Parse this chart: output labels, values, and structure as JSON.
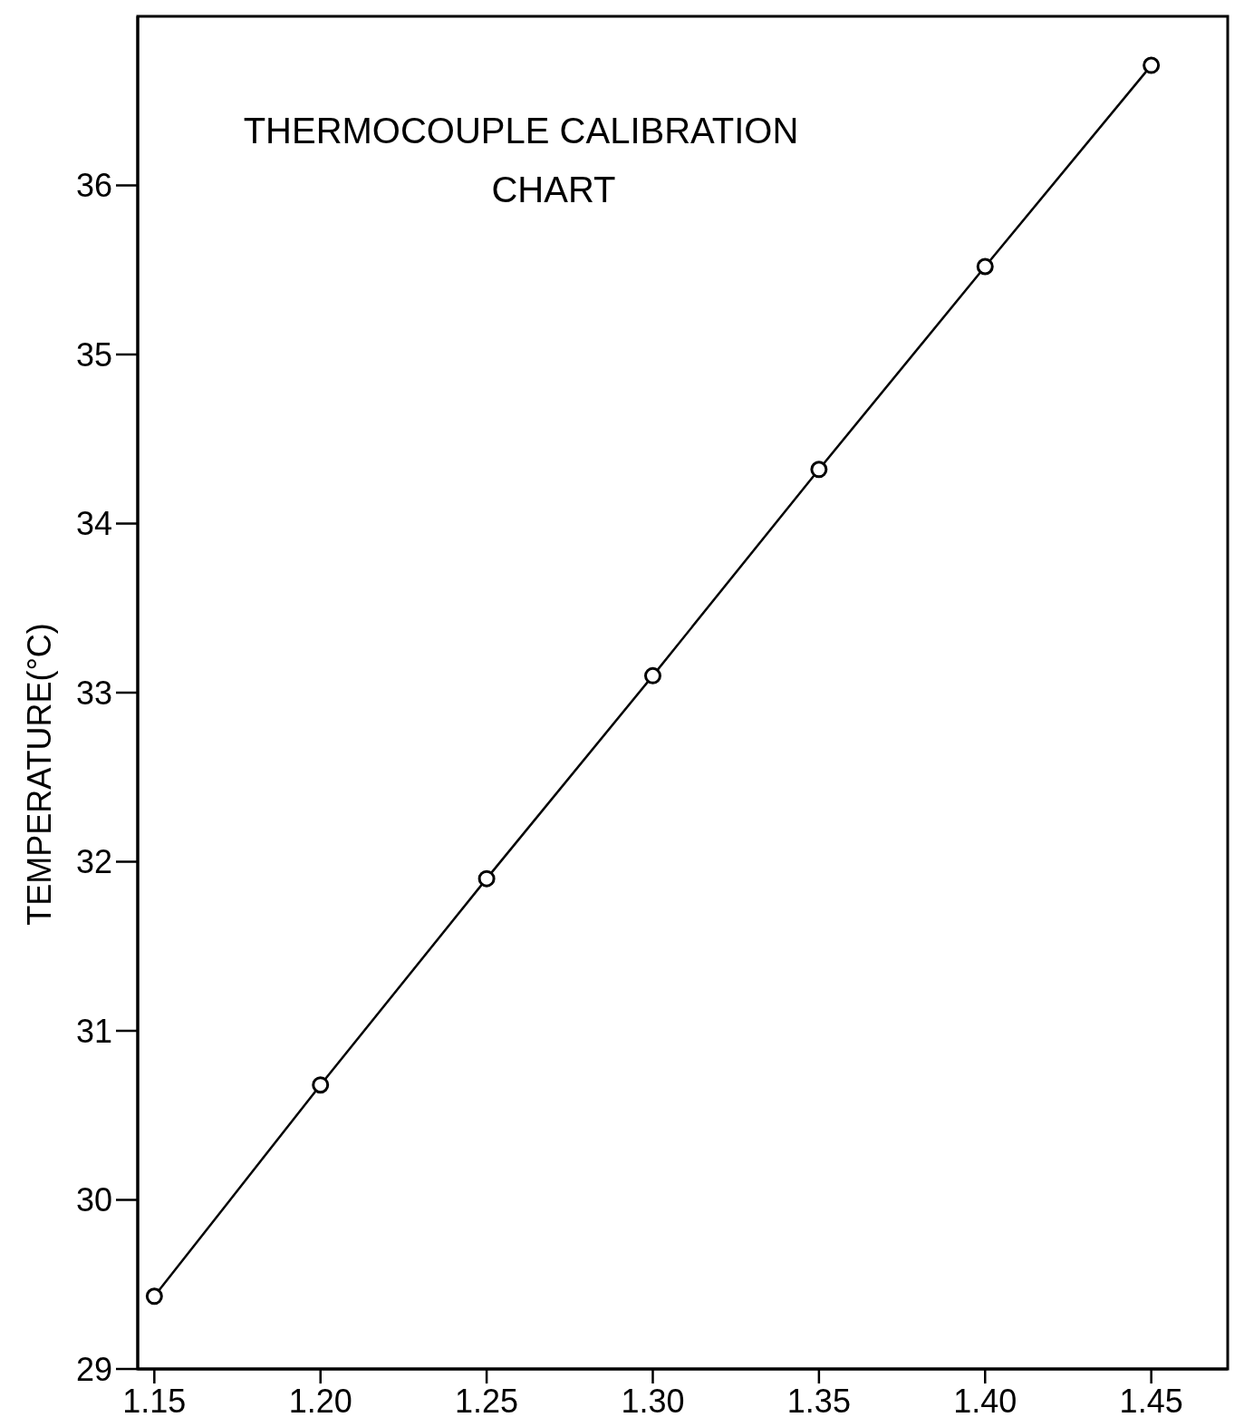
{
  "chart_data": {
    "type": "line",
    "title": "THERMOCOUPLE CALIBRATION CHART",
    "ylabel": "TEMPERATURE(°C)",
    "x": [
      1.15,
      1.2,
      1.25,
      1.3,
      1.35,
      1.4,
      1.45
    ],
    "series": [
      {
        "color": "#000000",
        "values": [
          29.43,
          30.68,
          31.9,
          33.1,
          34.32,
          35.52,
          36.71
        ]
      }
    ],
    "xlim": [
      1.145,
      1.473
    ],
    "ylim": [
      29,
      37
    ],
    "xticks": [
      {
        "value": 1.15,
        "label": "1.15"
      },
      {
        "value": 1.2,
        "label": "1.20"
      },
      {
        "value": 1.25,
        "label": "1.25"
      },
      {
        "value": 1.3,
        "label": "1.30"
      },
      {
        "value": 1.35,
        "label": "1.35"
      },
      {
        "value": 1.4,
        "label": "1.40"
      },
      {
        "value": 1.45,
        "label": "1.45"
      }
    ],
    "yticks": [
      29,
      30,
      31,
      32,
      33,
      34,
      35,
      36
    ],
    "grid": false,
    "marker": "circle",
    "line_style": "solid"
  }
}
